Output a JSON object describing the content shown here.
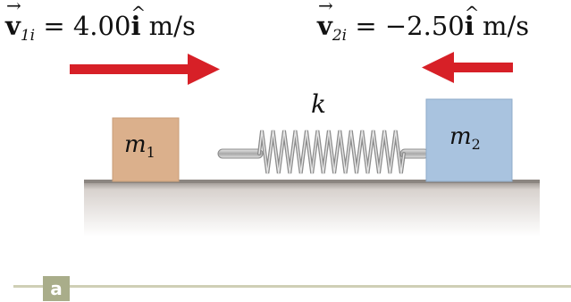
{
  "v1": {
    "vector": "v",
    "arrow": "→",
    "sub": "1i",
    "eq": " = 4.00",
    "unit_vec": "i",
    "hat": "^",
    "unit": " m/s"
  },
  "v2": {
    "vector": "v",
    "arrow": "→",
    "sub": "2i",
    "eq": " = −2.50",
    "unit_vec": "i",
    "hat": "^",
    "unit": " m/s"
  },
  "block1": {
    "name": "m",
    "sub": "1"
  },
  "block2": {
    "name": "m",
    "sub": "2"
  },
  "spring_label": "k",
  "panel_label": "a",
  "colors": {
    "arrow": "#d72027",
    "block1": "#dbb08c",
    "block2": "#a9c3df",
    "floor_top": "#8b8580",
    "spring": "#9a9a9a",
    "panel_line": "#cfcfb6"
  }
}
